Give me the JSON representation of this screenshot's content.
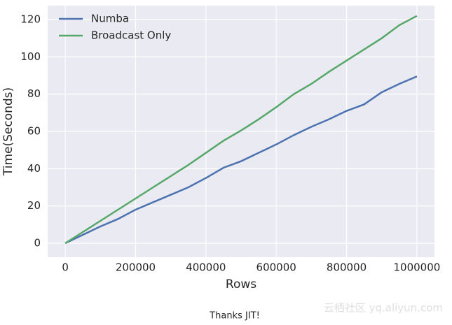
{
  "chart_data": {
    "type": "line",
    "x_label": "Rows",
    "y_label": "Time(Seconds)",
    "x": [
      0,
      50000,
      100000,
      150000,
      200000,
      250000,
      300000,
      350000,
      400000,
      450000,
      500000,
      550000,
      600000,
      650000,
      700000,
      750000,
      800000,
      850000,
      900000,
      950000,
      1000000
    ],
    "series": [
      {
        "name": "Numba",
        "color": "#4c72b0",
        "values": [
          0,
          4.5,
          9,
          13,
          18,
          22,
          26,
          30,
          35,
          40.5,
          44,
          48.5,
          53,
          58,
          62.5,
          66.5,
          71,
          74.5,
          81,
          85.5,
          89.5
        ]
      },
      {
        "name": "Broadcast Only",
        "color": "#55a868",
        "values": [
          0,
          6,
          12,
          18,
          24,
          30,
          36,
          42,
          48.5,
          55,
          60.5,
          66.5,
          73,
          80,
          85.5,
          92,
          98,
          104,
          110,
          117,
          122
        ]
      }
    ],
    "xlim": [
      -50000,
      1050000
    ],
    "ylim": [
      -7.5,
      127.5
    ],
    "xticks": [
      0,
      200000,
      400000,
      600000,
      800000,
      1000000
    ],
    "yticks": [
      0,
      20,
      40,
      60,
      80,
      100,
      120
    ],
    "grid": true,
    "legend": "upper-left"
  },
  "caption": "Thanks JIT!",
  "watermark": "云栖社区 yq.aliyun.com"
}
